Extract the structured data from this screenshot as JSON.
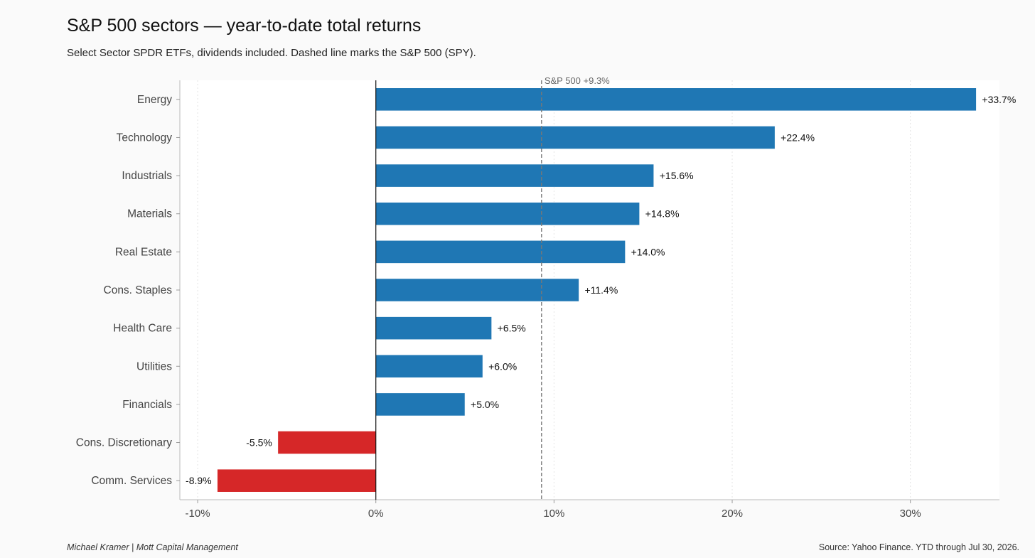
{
  "header": {
    "title": "S&P 500 sectors — year-to-date total returns",
    "subtitle": "Select Sector SPDR ETFs, dividends included. Dashed line marks the S&P 500 (SPY)."
  },
  "footer": {
    "left": "Michael Kramer  |  Mott Capital Management",
    "right": "Source: Yahoo Finance. YTD through Jul 30, 2026."
  },
  "chart_data": {
    "type": "bar",
    "orientation": "horizontal",
    "title": "S&P 500 sectors — year-to-date total returns",
    "subtitle": "Select Sector SPDR ETFs, dividends included. Dashed line marks the S&P 500 (SPY).",
    "xlabel": "",
    "ylabel": "",
    "categories": [
      "Energy",
      "Technology",
      "Industrials",
      "Materials",
      "Real Estate",
      "Cons. Staples",
      "Health Care",
      "Utilities",
      "Financials",
      "Cons. Discretionary",
      "Comm. Services"
    ],
    "values": [
      33.7,
      22.4,
      15.6,
      14.8,
      14.0,
      11.4,
      6.5,
      6.0,
      5.0,
      -5.5,
      -8.9
    ],
    "data_labels": [
      "+33.7%",
      "+22.4%",
      "+15.6%",
      "+14.8%",
      "+14.0%",
      "+11.4%",
      "+6.5%",
      "+6.0%",
      "+5.0%",
      "-5.5%",
      "-8.9%"
    ],
    "xlim": [
      -11,
      35
    ],
    "xticks": [
      -10,
      0,
      10,
      20,
      30
    ],
    "xtick_labels": [
      "-10%",
      "0%",
      "10%",
      "20%",
      "30%"
    ],
    "grid": "vertical dotted",
    "reference_line": {
      "value": 9.3,
      "label": "S&P 500 +9.3%",
      "style": "dashed"
    },
    "colors": {
      "positive": "#1f77b4",
      "negative": "#d62728",
      "reference": "#777777"
    }
  }
}
